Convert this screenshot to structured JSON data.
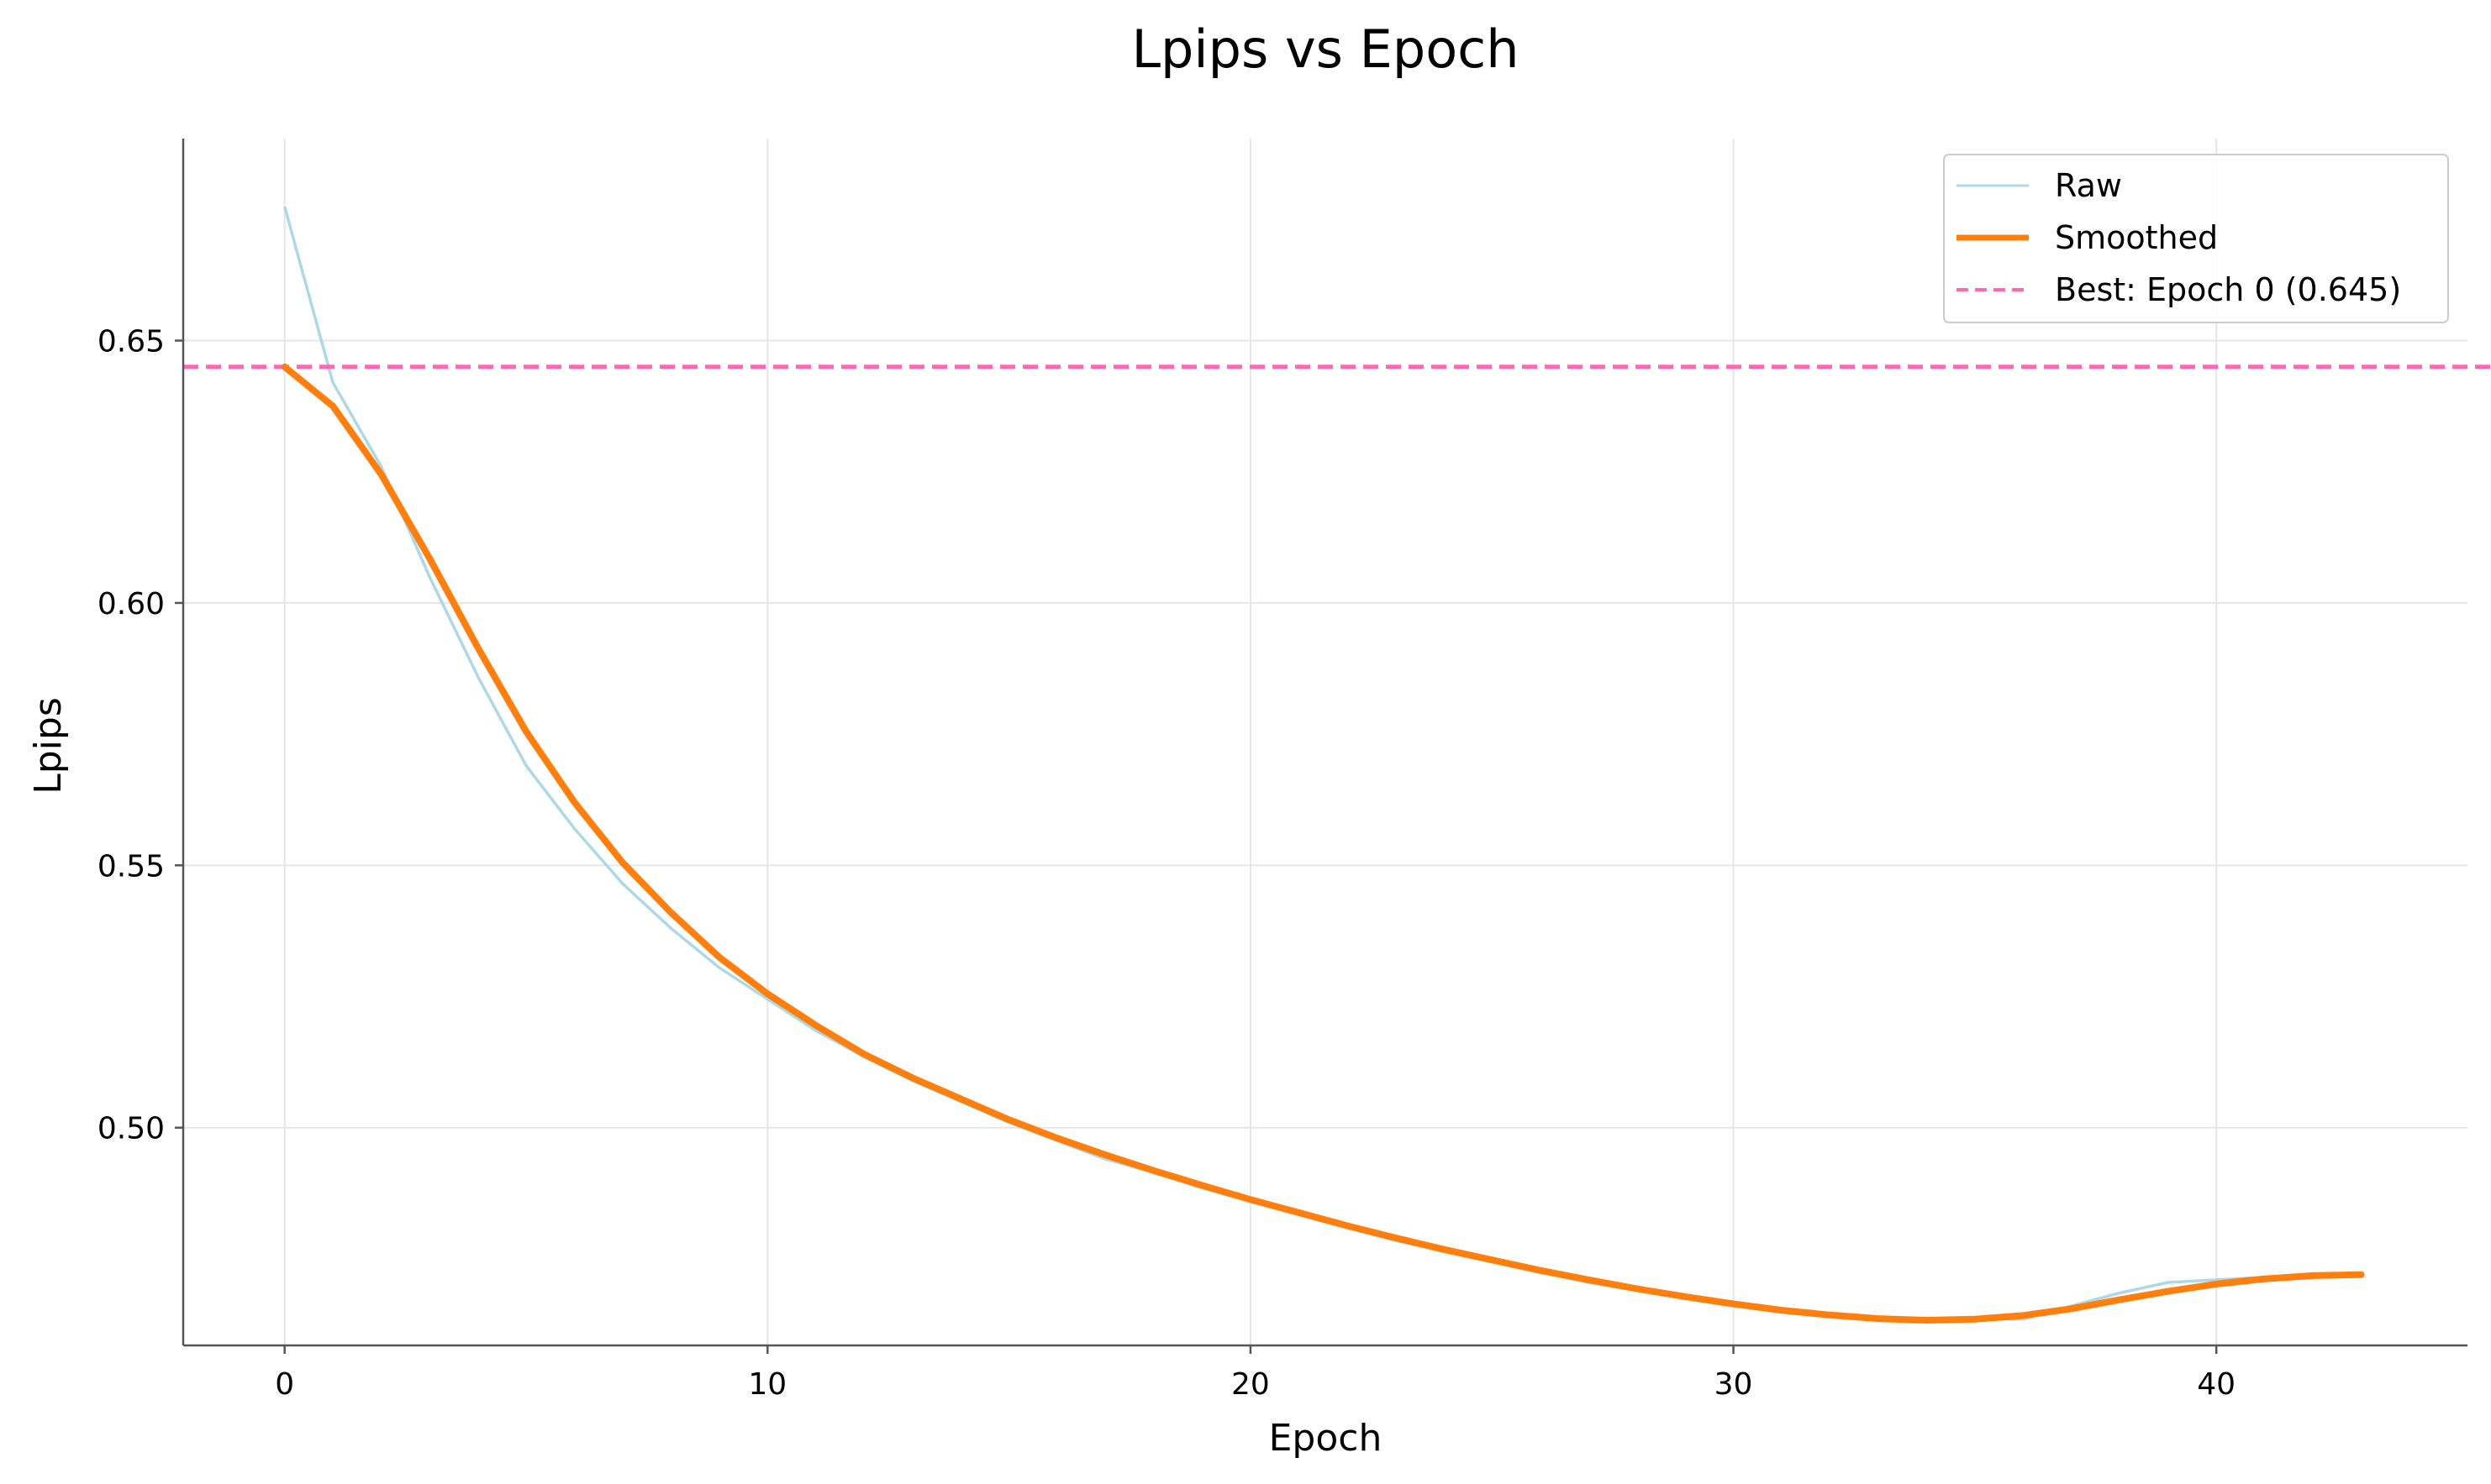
{
  "chart_data": {
    "type": "line",
    "title": "Lpips vs Epoch",
    "xlabel": "Epoch",
    "ylabel": "Lpips",
    "xlim": [
      -2.1,
      45.2
    ],
    "ylim": [
      0.4585,
      0.6885
    ],
    "xticks": [
      0,
      10,
      20,
      30,
      40
    ],
    "yticks": [
      0.5,
      0.55,
      0.6,
      0.65
    ],
    "ytick_labels": [
      "0.50",
      "0.55",
      "0.60",
      "0.65"
    ],
    "grid": true,
    "legend_position": "top-right",
    "series": [
      {
        "name": "Raw",
        "color": "#add8e6",
        "x": [
          0,
          1,
          2,
          3,
          4,
          5,
          6,
          7,
          8,
          9,
          10,
          11,
          12,
          13,
          14,
          15,
          16,
          17,
          18,
          19,
          20,
          21,
          22,
          23,
          24,
          25,
          26,
          27,
          28,
          29,
          30,
          31,
          32,
          33,
          34,
          35,
          36,
          37,
          38,
          39,
          40,
          41,
          42,
          43
        ],
        "values": [
          0.6755,
          0.642,
          0.626,
          0.605,
          0.586,
          0.569,
          0.557,
          0.5465,
          0.538,
          0.5305,
          0.5245,
          0.5185,
          0.5135,
          0.509,
          0.505,
          0.501,
          0.4975,
          0.494,
          0.4915,
          0.4885,
          0.486,
          0.4835,
          0.481,
          0.4785,
          0.4765,
          0.4745,
          0.4725,
          0.4705,
          0.469,
          0.4675,
          0.466,
          0.4655,
          0.4645,
          0.4635,
          0.463,
          0.4635,
          0.4635,
          0.466,
          0.4685,
          0.4705,
          0.471,
          0.4715,
          0.472,
          0.472
        ]
      },
      {
        "name": "Smoothed",
        "color": "#ff7f0e",
        "x": [
          0,
          1,
          2,
          3,
          4,
          5,
          6,
          7,
          8,
          9,
          10,
          11,
          12,
          13,
          14,
          15,
          16,
          17,
          18,
          19,
          20,
          21,
          22,
          23,
          24,
          25,
          26,
          27,
          28,
          29,
          30,
          31,
          32,
          33,
          34,
          35,
          36,
          37,
          38,
          39,
          40,
          41,
          42,
          43
        ],
        "values": [
          0.645,
          0.6375,
          0.6245,
          0.6085,
          0.5915,
          0.5755,
          0.562,
          0.5505,
          0.541,
          0.5325,
          0.5255,
          0.5195,
          0.514,
          0.5095,
          0.5055,
          0.5015,
          0.498,
          0.4948,
          0.4918,
          0.489,
          0.4863,
          0.4838,
          0.4813,
          0.479,
          0.4768,
          0.4748,
          0.4728,
          0.471,
          0.4693,
          0.4678,
          0.4664,
          0.4652,
          0.4643,
          0.4636,
          0.4633,
          0.4635,
          0.4642,
          0.4655,
          0.4672,
          0.4688,
          0.4702,
          0.4712,
          0.4718,
          0.472
        ]
      }
    ],
    "reference_line": {
      "name": "Best: Epoch 0 (0.645)",
      "color": "#ff69b4",
      "style": "dashed",
      "y": 0.645
    }
  }
}
